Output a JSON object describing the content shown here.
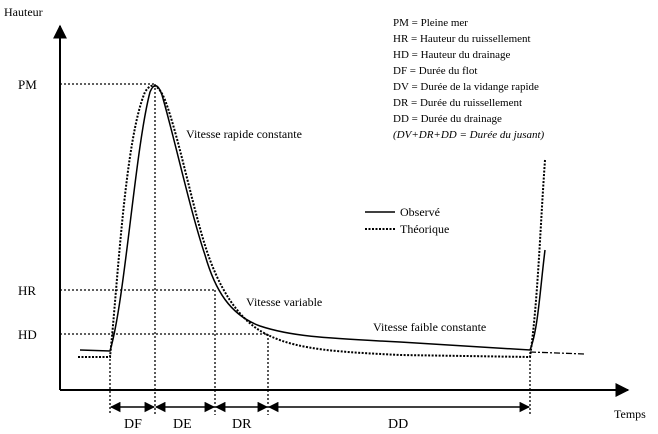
{
  "axes": {
    "y_label": "Hauteur",
    "x_label": "Temps"
  },
  "levels": [
    "PM",
    "HR",
    "HD"
  ],
  "definitions": [
    "PM = Pleine mer",
    "HR = Hauteur du ruissellement",
    "HD = Hauteur du drainage",
    "DF = Durée du flot",
    "DV = Durée de la vidange rapide",
    "DR = Durée du ruissellement",
    "DD = Durée du drainage",
    "(DV+DR+DD = Durée du jusant)"
  ],
  "annotations": [
    "Vitesse rapide constante",
    "Vitesse variable",
    "Vitesse faible constante"
  ],
  "legend": [
    "Observé",
    "Théorique"
  ],
  "intervals": [
    "DF",
    "DE",
    "DR",
    "DD"
  ]
}
